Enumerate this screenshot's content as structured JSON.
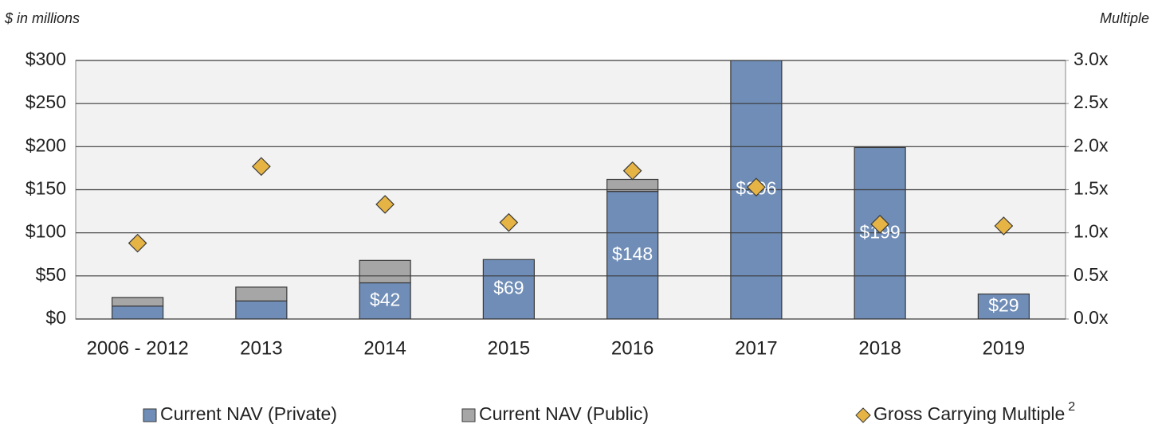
{
  "chart_data": {
    "type": "bar",
    "stacked": true,
    "y_axis_label": "$ in millions",
    "y2_axis_label": "Multiple",
    "categories": [
      "2006 - 2012",
      "2013",
      "2014",
      "2015",
      "2016",
      "2017",
      "2018",
      "2019"
    ],
    "series": [
      {
        "name": "Current NAV (Private)",
        "color": "#6f8db6",
        "type": "bar",
        "values": [
          15,
          21,
          42,
          69,
          148,
          306,
          199,
          29
        ],
        "value_labels": [
          null,
          null,
          "$42",
          "$69",
          "$148",
          "$306",
          "$199",
          "$29"
        ]
      },
      {
        "name": "Current NAV (Public)",
        "color": "#a6a6a6",
        "type": "bar",
        "values": [
          10,
          16,
          26,
          0,
          14,
          0,
          0,
          0
        ]
      },
      {
        "name": "Gross Carrying Multiple",
        "color": "#e6b445",
        "type": "scatter",
        "axis": "y2",
        "values": [
          0.88,
          1.77,
          1.33,
          1.12,
          1.72,
          1.53,
          1.1,
          1.08
        ]
      }
    ],
    "legend_footnote": "2",
    "ylim": [
      0,
      300
    ],
    "yticks": [
      {
        "value": 0,
        "label": "$0"
      },
      {
        "value": 50,
        "label": "$50"
      },
      {
        "value": 100,
        "label": "$100"
      },
      {
        "value": 150,
        "label": "$150"
      },
      {
        "value": 200,
        "label": "$200"
      },
      {
        "value": 250,
        "label": "$250"
      },
      {
        "value": 300,
        "label": "$300"
      }
    ],
    "y2lim": [
      0,
      3
    ],
    "y2ticks": [
      {
        "value": 0,
        "label": "0.0x"
      },
      {
        "value": 0.5,
        "label": "0.5x"
      },
      {
        "value": 1,
        "label": "1.0x"
      },
      {
        "value": 1.5,
        "label": "1.5x"
      },
      {
        "value": 2,
        "label": "2.0x"
      },
      {
        "value": 2.5,
        "label": "2.5x"
      },
      {
        "value": 3,
        "label": "3.0x"
      }
    ],
    "grid": true,
    "legend": "bottom"
  }
}
